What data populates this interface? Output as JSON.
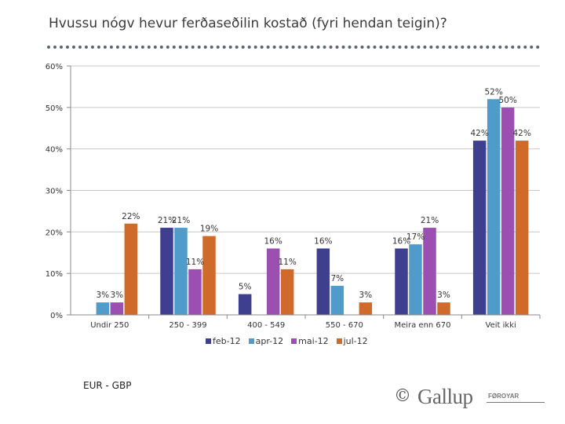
{
  "title": "Hvussu nógv hevur ferðaseðilin kostað (fyri hendan teigin)?",
  "note": "EUR - GBP",
  "logo": {
    "copyright": "©",
    "name": "Gallup",
    "sub": "FØROYAR"
  },
  "colors": {
    "feb-12": "#3f3f8f",
    "apr-12": "#4f9ccb",
    "mai-12": "#9b4fb0",
    "jul-12": "#d06a2a"
  },
  "chart_data": {
    "type": "bar",
    "title": "Hvussu nógv hevur ferðaseðilin kostað (fyri hendan teigin)?",
    "xlabel": "",
    "ylabel": "",
    "ylim": [
      0,
      60
    ],
    "yticks": [
      0,
      10,
      20,
      30,
      40,
      50,
      60
    ],
    "ytick_labels": [
      "0%",
      "10%",
      "20%",
      "30%",
      "40%",
      "50%",
      "60%"
    ],
    "grid": true,
    "legend_position": "bottom",
    "categories": [
      "Undir 250",
      "250 - 399",
      "400 - 549",
      "550 - 670",
      "Meira enn 670",
      "Veit ikki"
    ],
    "series": [
      {
        "name": "feb-12",
        "values": [
          null,
          21,
          5,
          16,
          16,
          42
        ],
        "labels": [
          "",
          "21%",
          "5%",
          "16%",
          "16%",
          "42%"
        ]
      },
      {
        "name": "apr-12",
        "values": [
          3,
          21,
          null,
          7,
          17,
          52
        ],
        "labels": [
          "3%",
          "21%",
          "",
          "7%",
          "17%",
          "52%"
        ]
      },
      {
        "name": "mai-12",
        "values": [
          3,
          11,
          16,
          null,
          21,
          50
        ],
        "labels": [
          "3%",
          "11%",
          "16%",
          "",
          "21%",
          "50%"
        ]
      },
      {
        "name": "jul-12",
        "values": [
          22,
          19,
          11,
          3,
          3,
          42
        ],
        "labels": [
          "22%",
          "19%",
          "11%",
          "3%",
          "3%",
          "42%"
        ]
      }
    ]
  }
}
